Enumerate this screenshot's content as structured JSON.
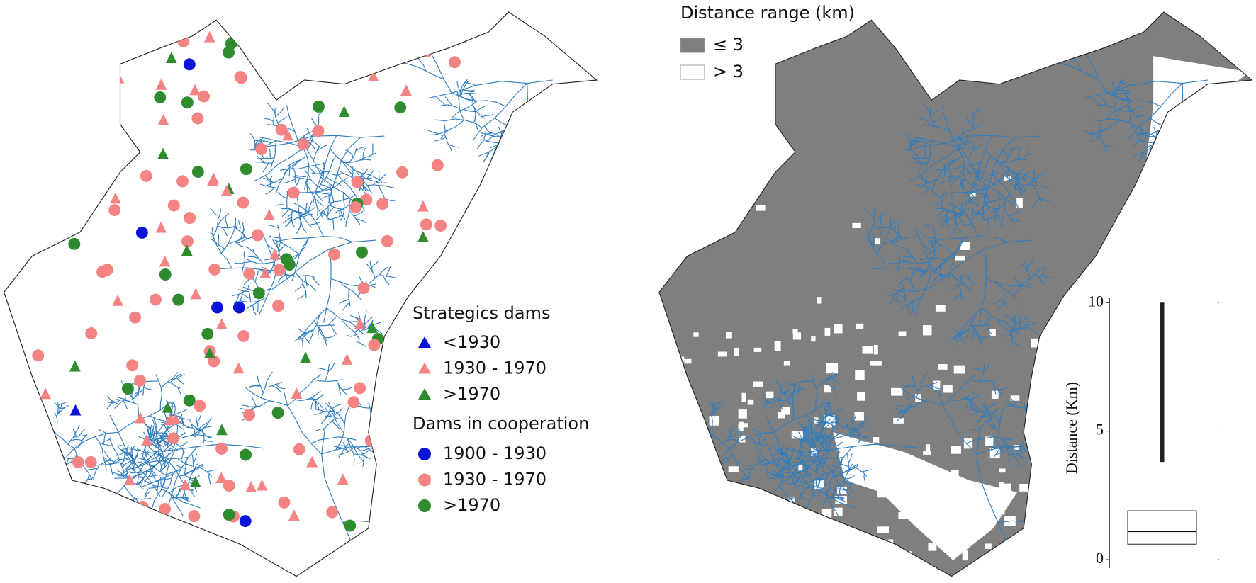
{
  "left_map": {
    "legend": {
      "strategic_title": "Strategics dams",
      "strategic_items": [
        "<1930",
        "1930 - 1970",
        ">1970"
      ],
      "coop_title": "Dams in cooperation",
      "coop_items": [
        "1900 - 1930",
        "1930 - 1970",
        ">1970"
      ],
      "colors": [
        "#0a14d8",
        "#f48484",
        "#2e8b2e"
      ]
    }
  },
  "right_map": {
    "legend": {
      "title": "Distance range (km)",
      "items": [
        "≤ 3",
        "> 3"
      ],
      "colors": [
        "#7f7f7f",
        "#ffffff"
      ]
    }
  },
  "chart_data": {
    "type": "box",
    "ylabel": "Distance (Km)",
    "ylim": [
      0,
      10.2
    ],
    "yticks": [
      0,
      5,
      10
    ],
    "box": {
      "whislo": 0,
      "q1": 0.6,
      "median": 1.1,
      "q3": 1.9,
      "whishi": 3.8,
      "fliers_max": 10
    }
  }
}
